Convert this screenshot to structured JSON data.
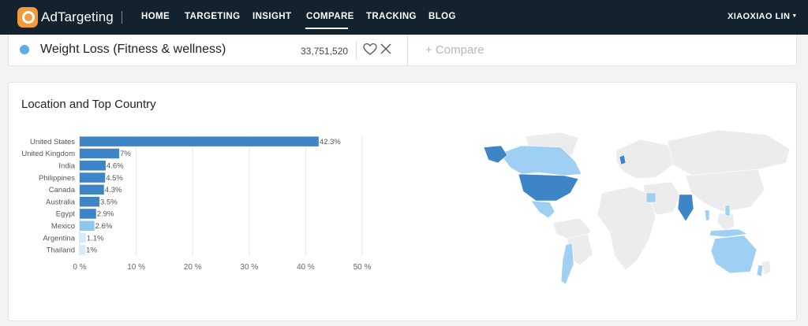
{
  "brand": {
    "name": "AdTargeting"
  },
  "nav": {
    "items": [
      "HOME",
      "TARGETING",
      "INSIGHT",
      "COMPARE",
      "TRACKING",
      "BLOG"
    ],
    "active": "COMPARE",
    "user": "XIAOXIAO LIN"
  },
  "compare": {
    "segment_name": "Weight Loss (Fitness & wellness)",
    "segment_count": "33,751,520",
    "add_label": "+ Compare",
    "dot_color": "#5aacea"
  },
  "card": {
    "title": "Location and Top Country"
  },
  "chart_data": {
    "type": "bar",
    "orientation": "horizontal",
    "categories": [
      "United States",
      "United Kingdom",
      "India",
      "Philippines",
      "Canada",
      "Australia",
      "Egypt",
      "Mexico",
      "Argentina",
      "Thailand"
    ],
    "values": [
      42.3,
      7,
      4.6,
      4.5,
      4.3,
      3.5,
      2.9,
      2.6,
      1.1,
      1
    ],
    "value_labels": [
      "42.3%",
      "7%",
      "4.6%",
      "4.5%",
      "4.3%",
      "3.5%",
      "2.9%",
      "2.6%",
      "1.1%",
      "1%"
    ],
    "x_ticks": [
      "0 %",
      "10 %",
      "20 %",
      "30 %",
      "40 %",
      "50 %"
    ],
    "xlim": [
      0,
      50
    ],
    "colors": {
      "high": "#3d85c6",
      "mid": "#8ec6f0",
      "low": "#d4ebfb"
    }
  },
  "map": {
    "colors": {
      "base": "#ececec",
      "high": "#3d85c6",
      "mid": "#9fd0f4"
    }
  }
}
